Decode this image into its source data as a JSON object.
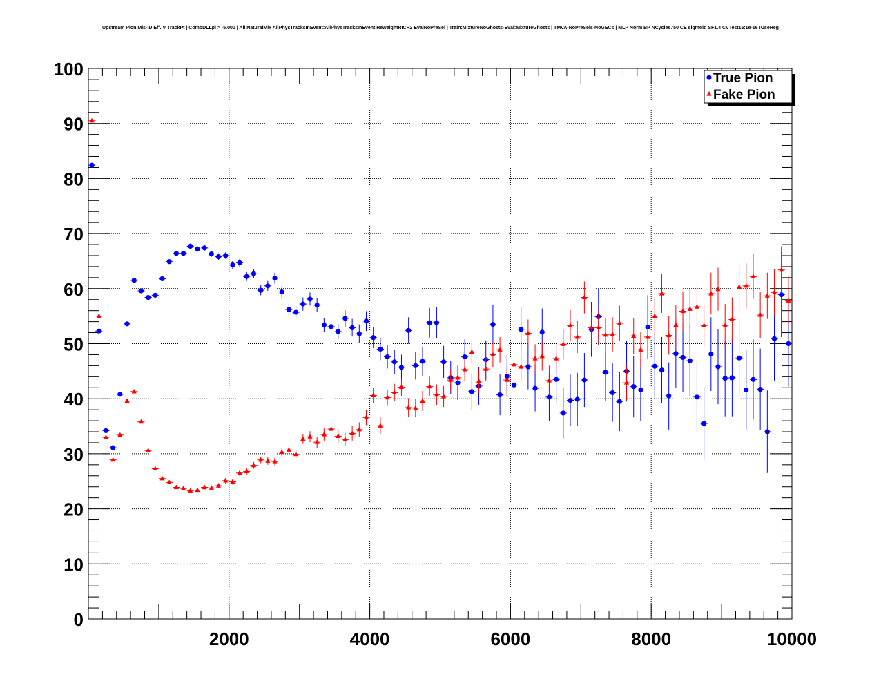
{
  "chart_data": {
    "type": "scatter",
    "title": "Upstream Pion Mis-ID Eff. V TrackPt | CombDLLpi > -5.000 | All NaturalMix AllPhysTracksInEvent:AllPhysTracksInEvent ReweightRICH2 EvalNoPreSel | Train:MixtureNoGhosts-Eval:MixtureGhosts | TMVA-NoPreSels-NoGECs | MLP Norm BP NCycles750 CE sigmoid SF1.4 CVTest15:1e-16 !UseReg",
    "xlabel": "",
    "ylabel": "",
    "xlim": [
      0,
      10000
    ],
    "ylim": [
      0,
      100
    ],
    "x_ticks": [
      2000,
      4000,
      6000,
      8000,
      10000
    ],
    "y_ticks": [
      0,
      10,
      20,
      30,
      40,
      50,
      60,
      70,
      80,
      90,
      100
    ],
    "grid": true,
    "legend_position": "top-right",
    "bin_width": 100,
    "x": [
      50,
      150,
      250,
      350,
      450,
      550,
      650,
      750,
      850,
      950,
      1050,
      1150,
      1250,
      1350,
      1450,
      1550,
      1650,
      1750,
      1850,
      1950,
      2050,
      2150,
      2250,
      2350,
      2450,
      2550,
      2650,
      2750,
      2850,
      2950,
      3050,
      3150,
      3250,
      3350,
      3450,
      3550,
      3650,
      3750,
      3850,
      3950,
      4050,
      4150,
      4250,
      4350,
      4450,
      4550,
      4650,
      4750,
      4850,
      4950,
      5050,
      5150,
      5250,
      5350,
      5450,
      5550,
      5650,
      5750,
      5850,
      5950,
      6050,
      6150,
      6250,
      6350,
      6450,
      6550,
      6650,
      6750,
      6850,
      6950,
      7050,
      7150,
      7250,
      7350,
      7450,
      7550,
      7650,
      7750,
      7850,
      7950,
      8050,
      8150,
      8250,
      8350,
      8450,
      8550,
      8650,
      8750,
      8850,
      8950,
      9050,
      9150,
      9250,
      9350,
      9450,
      9550,
      9650,
      9750,
      9850,
      9950
    ],
    "series": [
      {
        "name": "True Pion",
        "color": "#0000ff",
        "marker": "circle",
        "values": [
          82.4,
          52.3,
          34.2,
          31.1,
          40.8,
          53.6,
          61.5,
          59.6,
          58.4,
          58.8,
          61.8,
          64.9,
          66.4,
          66.4,
          67.7,
          67.2,
          67.4,
          66.3,
          65.8,
          66.0,
          64.3,
          64.7,
          62.2,
          62.7,
          59.7,
          60.5,
          61.9,
          59.4,
          56.2,
          55.7,
          57.2,
          58.1,
          57.0,
          53.4,
          53.1,
          52.2,
          54.6,
          52.9,
          51.8,
          54.1,
          51.1,
          49.0,
          47.6,
          46.7,
          45.7,
          52.4,
          46.0,
          46.8,
          53.8,
          53.8,
          46.7,
          43.8,
          42.9,
          47.6,
          41.3,
          42.3,
          47.1,
          53.5,
          40.7,
          44.1,
          42.5,
          52.6,
          45.8,
          41.9,
          52.1,
          40.3,
          43.5,
          37.4,
          39.7,
          39.9,
          43.4,
          52.6,
          54.9,
          44.8,
          41.1,
          39.5,
          45.0,
          42.2,
          41.6,
          53.0,
          45.9,
          45.2,
          40.5,
          48.2,
          47.5,
          46.9,
          40.3,
          35.5,
          48.1,
          45.8,
          43.7,
          43.8,
          47.4,
          41.6,
          43.5,
          41.7,
          34.0,
          50.9,
          58.9,
          50.0
        ],
        "errors": [
          0.3,
          0.3,
          0.4,
          0.4,
          0.4,
          0.4,
          0.4,
          0.4,
          0.4,
          0.4,
          0.4,
          0.4,
          0.4,
          0.4,
          0.5,
          0.5,
          0.5,
          0.5,
          0.6,
          0.6,
          0.7,
          0.7,
          0.8,
          0.8,
          0.9,
          0.9,
          1.0,
          1.0,
          1.1,
          1.1,
          1.2,
          1.2,
          1.3,
          1.3,
          1.4,
          1.4,
          1.5,
          1.6,
          1.7,
          1.8,
          1.9,
          2.0,
          2.1,
          2.2,
          2.3,
          2.4,
          2.5,
          2.6,
          2.7,
          2.8,
          2.9,
          3.0,
          3.1,
          3.2,
          3.3,
          3.4,
          3.5,
          3.6,
          3.7,
          3.8,
          3.9,
          4.0,
          4.1,
          4.2,
          4.3,
          4.4,
          4.5,
          4.6,
          4.7,
          4.8,
          4.9,
          5.0,
          5.1,
          5.2,
          5.3,
          5.4,
          5.5,
          5.6,
          5.7,
          5.8,
          5.9,
          6.0,
          6.1,
          6.2,
          6.3,
          6.4,
          6.5,
          6.6,
          6.7,
          6.8,
          6.9,
          7.0,
          7.1,
          7.2,
          7.3,
          7.4,
          7.5,
          7.6,
          7.7,
          7.8
        ]
      },
      {
        "name": "Fake Pion",
        "color": "#ff0000",
        "marker": "triangle",
        "values": [
          90.5,
          55.0,
          33.0,
          28.9,
          33.4,
          39.6,
          41.3,
          35.8,
          30.6,
          27.3,
          25.5,
          24.8,
          23.9,
          23.7,
          23.3,
          23.4,
          23.9,
          23.8,
          24.2,
          25.1,
          24.9,
          26.5,
          26.8,
          27.9,
          28.9,
          28.7,
          28.6,
          30.3,
          30.7,
          29.9,
          32.7,
          33.1,
          32.1,
          33.5,
          34.5,
          33.2,
          32.6,
          33.7,
          34.4,
          36.6,
          40.6,
          35.1,
          40.2,
          41.1,
          42.1,
          38.4,
          38.3,
          39.6,
          42.2,
          40.7,
          40.4,
          43.4,
          43.8,
          45.3,
          48.5,
          43.2,
          45.4,
          48.0,
          48.9,
          43.4,
          46.2,
          45.8,
          51.9,
          47.3,
          47.7,
          43.3,
          47.3,
          49.9,
          53.3,
          51.2,
          58.4,
          52.9,
          52.9,
          51.6,
          51.7,
          53.7,
          42.9,
          51.4,
          48.9,
          51.2,
          55.0,
          59.1,
          51.5,
          53.4,
          55.9,
          56.3,
          56.7,
          53.3,
          59.1,
          59.9,
          53.3,
          54.4,
          60.3,
          60.5,
          62.2,
          55.2,
          58.7,
          59.3,
          63.4,
          57.8
        ],
        "errors": [
          0.3,
          0.3,
          0.3,
          0.3,
          0.3,
          0.3,
          0.3,
          0.3,
          0.3,
          0.3,
          0.3,
          0.3,
          0.3,
          0.3,
          0.4,
          0.4,
          0.4,
          0.4,
          0.4,
          0.5,
          0.5,
          0.5,
          0.6,
          0.6,
          0.6,
          0.7,
          0.7,
          0.8,
          0.8,
          0.9,
          0.9,
          1.0,
          1.0,
          1.1,
          1.1,
          1.2,
          1.2,
          1.3,
          1.3,
          1.4,
          1.4,
          1.5,
          1.5,
          1.6,
          1.6,
          1.7,
          1.7,
          1.8,
          1.8,
          1.9,
          1.9,
          2.0,
          2.0,
          2.1,
          2.1,
          2.2,
          2.2,
          2.3,
          2.3,
          2.4,
          2.4,
          2.5,
          2.5,
          2.6,
          2.6,
          2.7,
          2.7,
          2.8,
          2.8,
          2.9,
          2.9,
          3.0,
          3.0,
          3.1,
          3.1,
          3.2,
          3.2,
          3.3,
          3.3,
          3.4,
          3.4,
          3.5,
          3.5,
          3.6,
          3.6,
          3.7,
          3.7,
          3.8,
          3.8,
          3.9,
          3.9,
          4.0,
          4.0,
          4.1,
          4.1,
          4.2,
          4.2,
          4.3,
          4.3,
          4.4
        ]
      }
    ]
  }
}
